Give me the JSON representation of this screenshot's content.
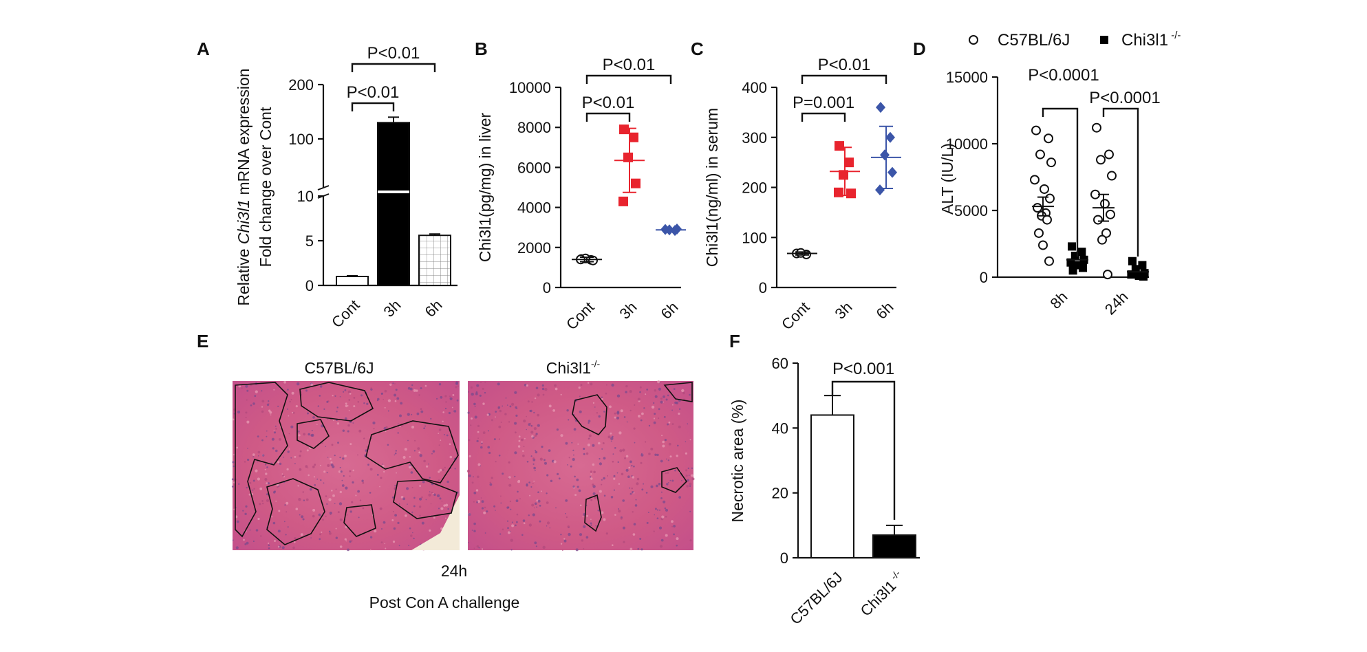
{
  "colors": {
    "axis": "#111111",
    "red": "#e8242e",
    "blue": "#3b55a8",
    "histo_bg": "#d9668c"
  },
  "chart_data": [
    {
      "panel": "A",
      "type": "bar",
      "categories": [
        "Cont",
        "3h",
        "6h"
      ],
      "values": [
        1,
        130,
        5.6
      ],
      "errors": [
        0.08,
        10,
        0.15
      ],
      "ylabel_prefix": "Relative ",
      "ylabel_italic": "Chi3l1",
      "ylabel_suffix": " mRNA expression",
      "ylabel2": "Fold change over Cont",
      "yticks": [
        0,
        5,
        10,
        100,
        200
      ],
      "ytick_labels": [
        "0",
        "5",
        "10",
        "100",
        "200"
      ],
      "axis_break": [
        10,
        10
      ],
      "ylim": [
        0,
        200
      ],
      "comparisons": [
        {
          "from": 0,
          "to": 1,
          "label": "P<0.01"
        },
        {
          "from": 0,
          "to": 2,
          "label": "P<0.01"
        }
      ]
    },
    {
      "panel": "B",
      "type": "scatter",
      "categories": [
        "Cont",
        "3h",
        "6h"
      ],
      "series": [
        {
          "points": [
            1420,
            1380,
            1450,
            1350,
            1400
          ],
          "mean": 1400,
          "sd": 110,
          "color": "#111111",
          "marker": "open-circle"
        },
        {
          "points": [
            7900,
            7500,
            6500,
            5200,
            4300
          ],
          "mean": 6350,
          "sd": 1600,
          "color": "#e8242e",
          "marker": "square"
        },
        {
          "points": [
            2900,
            2850,
            2880,
            2920
          ],
          "mean": 2880,
          "sd": 60,
          "color": "#3b55a8",
          "marker": "diamond"
        }
      ],
      "ylabel": "Chi3l1(pg/mg) in liver",
      "yticks": [
        0,
        2000,
        4000,
        6000,
        8000,
        10000
      ],
      "ylim": [
        0,
        10000
      ],
      "comparisons": [
        {
          "from": 0,
          "to": 1,
          "label": "P<0.01"
        },
        {
          "from": 0,
          "to": 2,
          "label": "P<0.01"
        }
      ]
    },
    {
      "panel": "C",
      "type": "scatter",
      "categories": [
        "Cont",
        "3h",
        "6h"
      ],
      "series": [
        {
          "points": [
            68,
            66,
            69
          ],
          "mean": 68,
          "sd": 3,
          "color": "#111111",
          "marker": "open-circle"
        },
        {
          "points": [
            283,
            250,
            225,
            188,
            190
          ],
          "mean": 232,
          "sd": 48,
          "color": "#e8242e",
          "marker": "square"
        },
        {
          "points": [
            360,
            300,
            265,
            230,
            195
          ],
          "mean": 260,
          "sd": 62,
          "color": "#3b55a8",
          "marker": "diamond"
        }
      ],
      "ylabel": "Chi3l1(ng/ml) in serum",
      "yticks": [
        0,
        100,
        200,
        300,
        400
      ],
      "ylim": [
        0,
        400
      ],
      "comparisons": [
        {
          "from": 0,
          "to": 1,
          "label": "P=0.001"
        },
        {
          "from": 0,
          "to": 2,
          "label": "P<0.01"
        }
      ]
    },
    {
      "panel": "D",
      "type": "scatter",
      "categories": [
        "8h",
        "24h"
      ],
      "legend": {
        "wt": "C57BL/6J",
        "ko_base": "Chi3l1",
        "ko_sup": " -/-"
      },
      "series_wt": [
        {
          "points": [
            11000,
            10400,
            9200,
            8600,
            7300,
            6600,
            5900,
            5200,
            4800,
            4600,
            4300,
            3300,
            2400,
            1200
          ],
          "mean": 5300,
          "sem": 700
        },
        {
          "points": [
            11200,
            9200,
            8800,
            7600,
            6200,
            5500,
            4700,
            4300,
            3300,
            2800,
            200
          ],
          "mean": 5200,
          "sem": 1000
        }
      ],
      "series_ko": [
        {
          "points": [
            2300,
            1900,
            1600,
            1300,
            1100,
            900,
            700,
            500
          ],
          "mean": 1300,
          "sem": 200
        },
        {
          "points": [
            1200,
            900,
            600,
            300,
            200,
            100,
            50
          ],
          "mean": 400,
          "sem": 150
        }
      ],
      "ylabel": "ALT (IU/L)",
      "yticks": [
        0,
        5000,
        10000,
        15000
      ],
      "ylim": [
        0,
        15000
      ],
      "comparisons": [
        {
          "group": 0,
          "label": "P<0.0001"
        },
        {
          "group": 1,
          "label": "P<0.0001"
        }
      ]
    },
    {
      "panel": "F",
      "type": "bar",
      "categories": [
        "C57BL/6J",
        "Chi3l1"
      ],
      "category_sup": [
        "",
        " -/-"
      ],
      "values": [
        44,
        7
      ],
      "errors": [
        6,
        3
      ],
      "fills": [
        "#ffffff",
        "#000000"
      ],
      "ylabel": "Necrotic area (%)",
      "yticks": [
        0,
        20,
        40,
        60
      ],
      "ylim": [
        0,
        60
      ],
      "comparison": {
        "from": 0,
        "to": 1,
        "label": "P<0.001"
      }
    }
  ],
  "panel_E": {
    "letter": "E",
    "title_left": "C57BL/6J",
    "title_right_base": "Chi3l1",
    "title_right_sup": "-/-",
    "time_label": "24h",
    "caption": "Post Con A challenge"
  }
}
